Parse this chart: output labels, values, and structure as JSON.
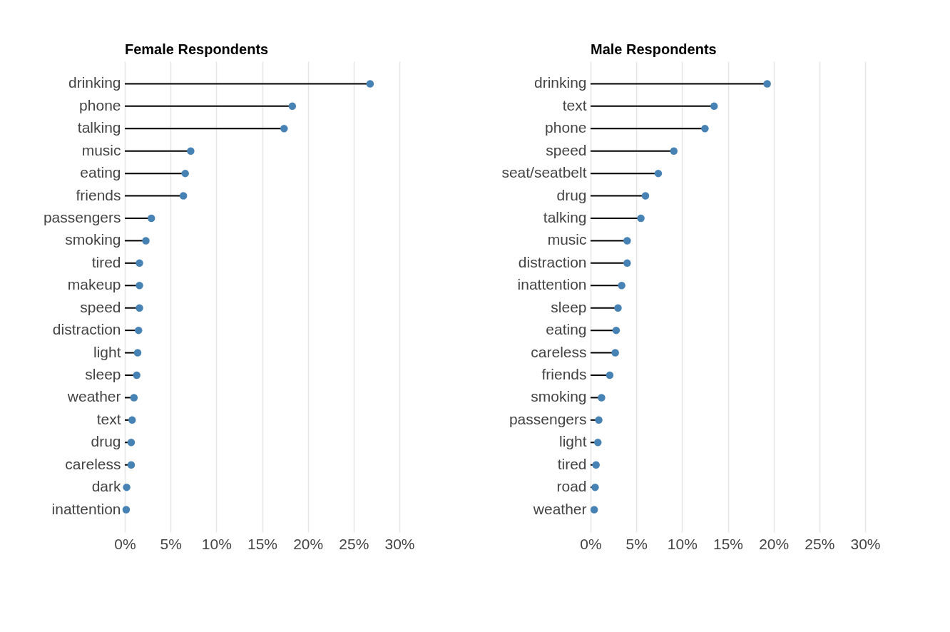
{
  "chart_data": [
    {
      "type": "lollipop",
      "orientation": "horizontal",
      "title": "Female Respondents",
      "marker": "circle",
      "grid": "x",
      "color": "#4682b4",
      "categories": [
        "drinking",
        "phone",
        "talking",
        "music",
        "eating",
        "friends",
        "passengers",
        "smoking",
        "tired",
        "makeup",
        "speed",
        "distraction",
        "light",
        "sleep",
        "weather",
        "text",
        "drug",
        "careless",
        "dark",
        "inattention"
      ],
      "values": [
        26.8,
        18.3,
        17.4,
        7.2,
        6.6,
        6.4,
        2.9,
        2.3,
        1.6,
        1.6,
        1.6,
        1.5,
        1.4,
        1.3,
        1.0,
        0.8,
        0.7,
        0.7,
        0.2,
        0.15
      ],
      "xlim": [
        0,
        30
      ],
      "xticks": [
        {
          "value": 0,
          "label": "0%"
        },
        {
          "value": 5,
          "label": "5%"
        },
        {
          "value": 10,
          "label": "10%"
        },
        {
          "value": 15,
          "label": "15%"
        },
        {
          "value": 20,
          "label": "20%"
        },
        {
          "value": 25,
          "label": "25%"
        },
        {
          "value": 30,
          "label": "30%"
        }
      ]
    },
    {
      "type": "lollipop",
      "orientation": "horizontal",
      "title": "Male Respondents",
      "marker": "circle",
      "grid": "x",
      "color": "#4682b4",
      "categories": [
        "drinking",
        "text",
        "phone",
        "speed",
        "seat/seatbelt",
        "drug",
        "talking",
        "music",
        "distraction",
        "inattention",
        "sleep",
        "eating",
        "careless",
        "friends",
        "smoking",
        "passengers",
        "light",
        "tired",
        "road",
        "weather"
      ],
      "values": [
        19.3,
        13.5,
        12.5,
        9.1,
        7.4,
        6.0,
        5.5,
        4.0,
        4.0,
        3.4,
        3.0,
        2.8,
        2.7,
        2.1,
        1.2,
        0.9,
        0.8,
        0.6,
        0.5,
        0.4
      ],
      "xlim": [
        0,
        30
      ],
      "xticks": [
        {
          "value": 0,
          "label": "0%"
        },
        {
          "value": 5,
          "label": "5%"
        },
        {
          "value": 10,
          "label": "10%"
        },
        {
          "value": 15,
          "label": "15%"
        },
        {
          "value": 20,
          "label": "20%"
        },
        {
          "value": 25,
          "label": "25%"
        },
        {
          "value": 30,
          "label": "30%"
        }
      ]
    }
  ]
}
